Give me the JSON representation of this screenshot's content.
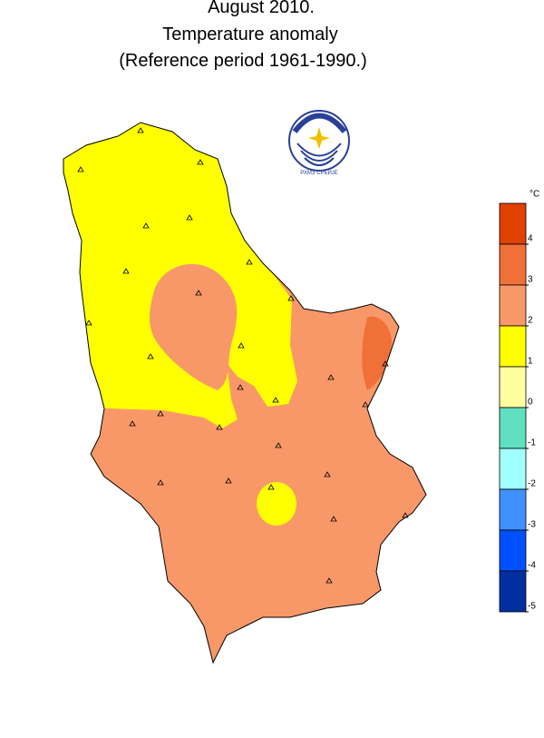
{
  "title": [
    "August 2010.",
    "Temperature anomaly",
    "(Reference period 1961-1990.)"
  ],
  "logo_text": "РХМЗ СРБИЈЕ",
  "legend": {
    "unit": "°C",
    "colors": [
      "#e04000",
      "#f07038",
      "#f89868",
      "#ffff00",
      "#ffffa0",
      "#60e0c0",
      "#a0ffff",
      "#4090ff",
      "#0050ff",
      "#0030a0"
    ],
    "ticks": [
      4,
      3,
      2,
      1,
      0,
      -1,
      -2,
      -3,
      -4,
      -5
    ]
  }
}
